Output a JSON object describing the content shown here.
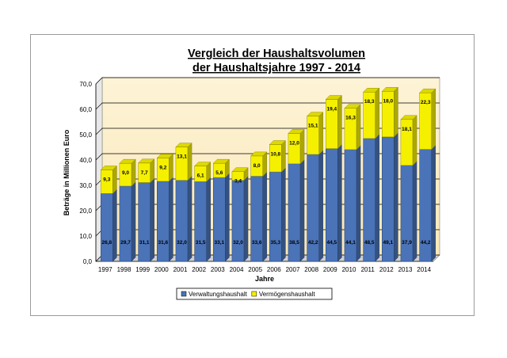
{
  "chart_data": {
    "type": "bar",
    "stacked": true,
    "title": [
      "Vergleich der Haushaltsvolumen",
      "der Haushaltsjahre 1997 - 2014"
    ],
    "xlabel": "Jahre",
    "ylabel": "Beträge in Millionen Euro",
    "ylim": [
      0,
      70
    ],
    "yticks": [
      "0,0",
      "10,0",
      "20,0",
      "30,0",
      "40,0",
      "50,0",
      "60,0",
      "70,0"
    ],
    "grid": true,
    "legend_position": "bottom",
    "categories": [
      "1997",
      "1998",
      "1999",
      "2000",
      "2001",
      "2002",
      "2003",
      "2004",
      "2005",
      "2006",
      "2007",
      "2008",
      "2009",
      "2010",
      "2011",
      "2012",
      "2013",
      "2014"
    ],
    "series": [
      {
        "name": "Verwaltungshaushalt",
        "color": "#4a73b8",
        "values": [
          26.8,
          29.7,
          31.1,
          31.6,
          32.0,
          31.5,
          33.1,
          32.0,
          33.6,
          35.3,
          38.5,
          42.2,
          44.5,
          44.1,
          48.5,
          49.1,
          37.9,
          44.2
        ],
        "labels": [
          "26,8",
          "29,7",
          "31,1",
          "31,6",
          "32,0",
          "31,5",
          "33,1",
          "32,0",
          "33,6",
          "35,3",
          "38,5",
          "42,2",
          "44,5",
          "44,1",
          "48,5",
          "49,1",
          "37,9",
          "44,2"
        ]
      },
      {
        "name": "Vermögenshaushalt",
        "color": "#f5f000",
        "values": [
          9.3,
          9.0,
          7.7,
          9.2,
          13.1,
          6.1,
          5.6,
          3.4,
          8.0,
          10.8,
          12.0,
          15.1,
          19.4,
          16.3,
          18.3,
          18.0,
          18.1,
          22.3
        ],
        "labels": [
          "9,3",
          "9,0",
          "7,7",
          "9,2",
          "13,1",
          "6,1",
          "5,6",
          "3,4",
          "8,0",
          "10,8",
          "12,0",
          "15,1",
          "19,4",
          "16,3",
          "18,3",
          "18,0",
          "18,1",
          "22,3"
        ]
      }
    ]
  }
}
